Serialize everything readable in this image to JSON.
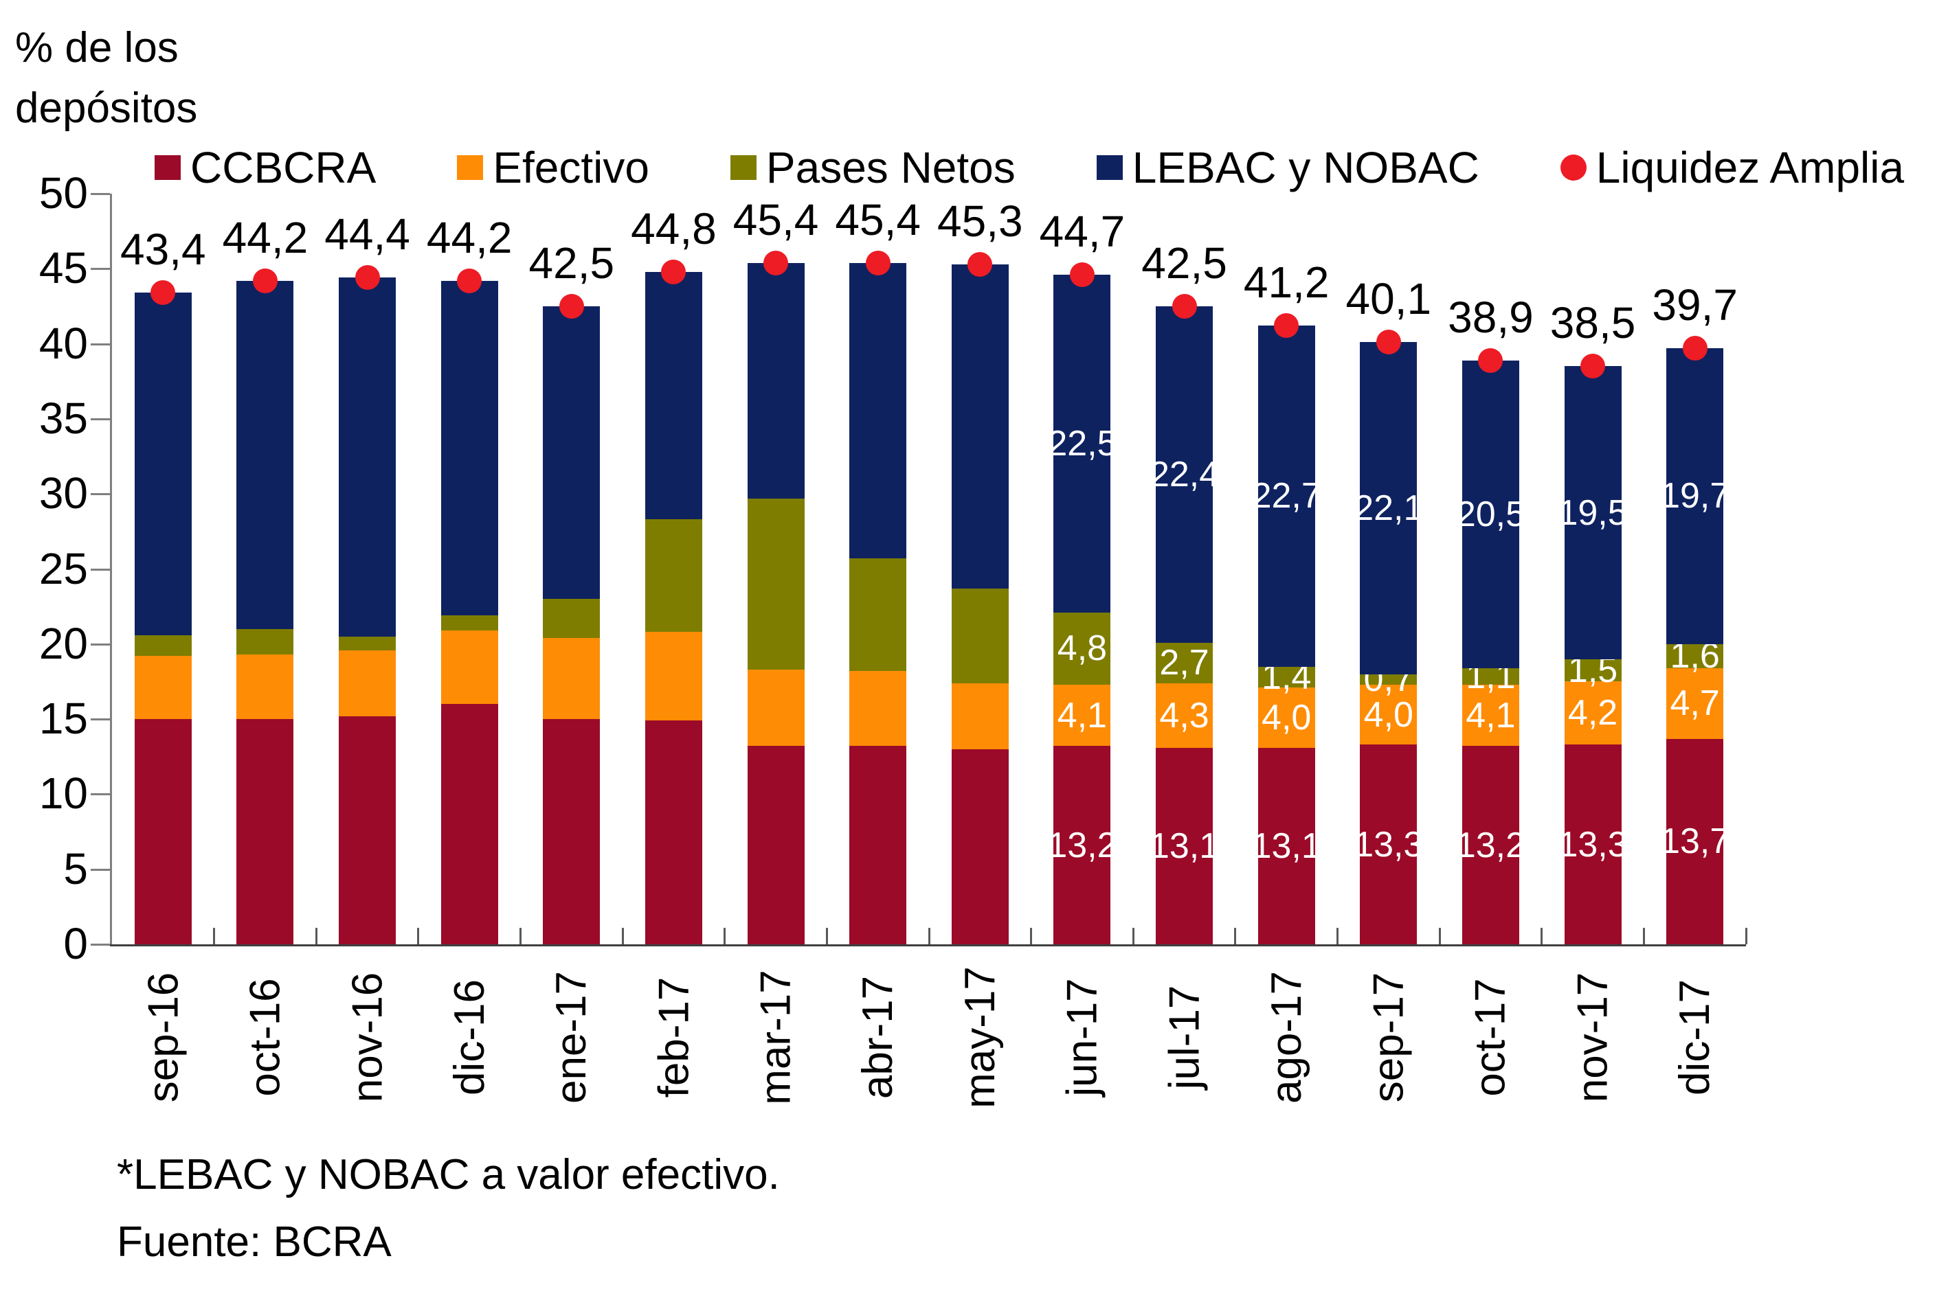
{
  "title": "% de los\ndepósitos",
  "footnote": "*LEBAC y NOBAC a valor efectivo.\nFuente: BCRA",
  "colors": {
    "ccbcra": "#9B0A28",
    "efectivo": "#FF8C05",
    "pases": "#7E7D00",
    "lebac": "#0F2260",
    "liquidez_dot": "#EE1C25",
    "axis_line": "#7f7f7f",
    "baseline": "#3f3f3f",
    "tick": "#595959"
  },
  "chart_data": {
    "type": "bar",
    "stacked": true,
    "title": "% de los depósitos",
    "ylabel": "% de los depósitos",
    "xlabel": "",
    "ylim": [
      0,
      50
    ],
    "y_ticks": [
      0,
      5,
      10,
      15,
      20,
      25,
      30,
      35,
      40,
      45,
      50
    ],
    "grid": false,
    "legend_position": "top",
    "categories": [
      "sep-16",
      "oct-16",
      "nov-16",
      "dic-16",
      "ene-17",
      "feb-17",
      "mar-17",
      "abr-17",
      "may-17",
      "jun-17",
      "jul-17",
      "ago-17",
      "sep-17",
      "oct-17",
      "nov-17",
      "dic-17"
    ],
    "series": [
      {
        "name": "CCBCRA",
        "color": "#9B0A28",
        "values": [
          15.0,
          15.0,
          15.2,
          16.0,
          15.0,
          14.9,
          13.2,
          13.2,
          13.0,
          13.2,
          13.1,
          13.1,
          13.3,
          13.2,
          13.3,
          13.7
        ]
      },
      {
        "name": "Efectivo",
        "color": "#FF8C05",
        "values": [
          4.2,
          4.3,
          4.4,
          4.9,
          5.4,
          5.9,
          5.1,
          5.0,
          4.4,
          4.1,
          4.3,
          4.0,
          4.0,
          4.1,
          4.2,
          4.7
        ]
      },
      {
        "name": "Pases Netos",
        "color": "#7E7D00",
        "values": [
          1.4,
          1.7,
          0.9,
          1.0,
          2.6,
          7.5,
          11.4,
          7.5,
          6.3,
          4.8,
          2.7,
          1.4,
          0.7,
          1.1,
          1.5,
          1.6
        ]
      },
      {
        "name": "LEBAC y NOBAC",
        "color": "#0F2260",
        "values": [
          22.8,
          23.2,
          23.9,
          22.3,
          19.5,
          16.5,
          15.7,
          19.7,
          21.6,
          22.5,
          22.4,
          22.7,
          22.1,
          20.5,
          19.5,
          19.7
        ]
      }
    ],
    "marker_series": {
      "name": "Liquidez Amplia",
      "color": "#EE1C25",
      "values": [
        43.4,
        44.2,
        44.4,
        44.2,
        42.5,
        44.8,
        45.4,
        45.4,
        45.3,
        44.7,
        42.5,
        41.2,
        40.1,
        38.9,
        38.5,
        39.7
      ]
    },
    "segment_labels_from_index": 9,
    "decimal_separator": ","
  }
}
